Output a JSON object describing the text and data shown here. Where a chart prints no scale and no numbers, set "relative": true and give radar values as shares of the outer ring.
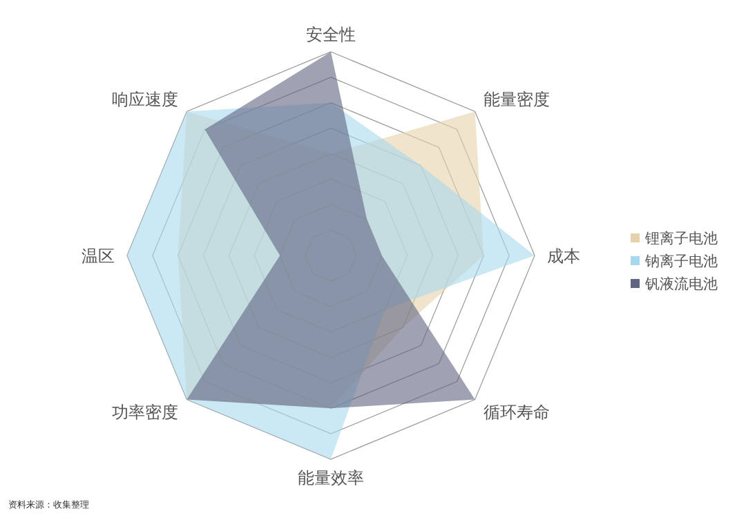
{
  "chart_data": {
    "type": "radar",
    "relative": true,
    "grid": true,
    "legend": "right",
    "categories": [
      "安全性",
      "能量密度",
      "成本",
      "循环寿命",
      "能量效率",
      "功率密度",
      "温区",
      "响应速度"
    ],
    "series": [
      {
        "name": "锂离子电池",
        "color": "#e6d2aa",
        "values": [
          0.5,
          1.0,
          0.75,
          0.5,
          0.75,
          1.0,
          0.75,
          1.0
        ]
      },
      {
        "name": "钠离子电池",
        "color": "#a8d8ee",
        "values": [
          0.75,
          0.625,
          1.0,
          0.375,
          1.0,
          1.0,
          1.0,
          1.0
        ]
      },
      {
        "name": "钒液流电池",
        "color": "#5f6480",
        "values": [
          1.0,
          0.25,
          0.25,
          1.0,
          0.75,
          1.0,
          0.25,
          0.875
        ]
      }
    ],
    "annotations": [
      "资料来源：收集整理"
    ]
  }
}
